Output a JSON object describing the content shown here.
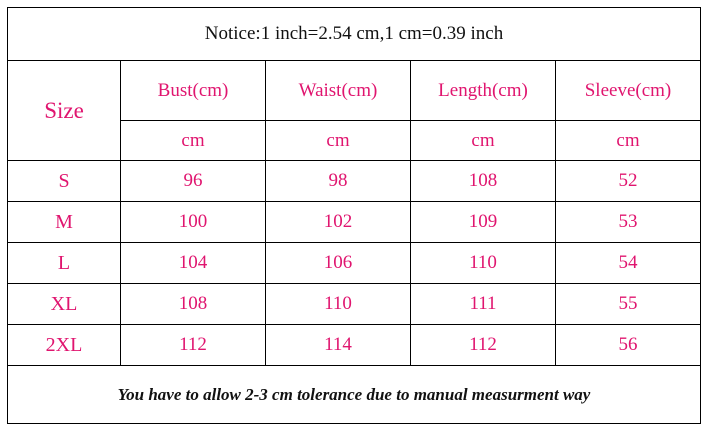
{
  "notice": "Notice:1 inch=2.54 cm,1 cm=0.39 inch",
  "table": {
    "header": [
      "Size",
      "Bust(cm)",
      "Waist(cm)",
      "Length(cm)",
      "Sleeve(cm)"
    ],
    "units": [
      "cm",
      "cm",
      "cm",
      "cm"
    ],
    "rows": [
      [
        "S",
        96,
        98,
        108,
        52
      ],
      [
        "M",
        100,
        102,
        109,
        53
      ],
      [
        "L",
        104,
        106,
        110,
        54
      ],
      [
        "XL",
        108,
        110,
        111,
        55
      ],
      [
        "2XL",
        112,
        114,
        112,
        56
      ]
    ]
  },
  "footer": "You have to allow 2-3 cm tolerance due to manual measurment way"
}
